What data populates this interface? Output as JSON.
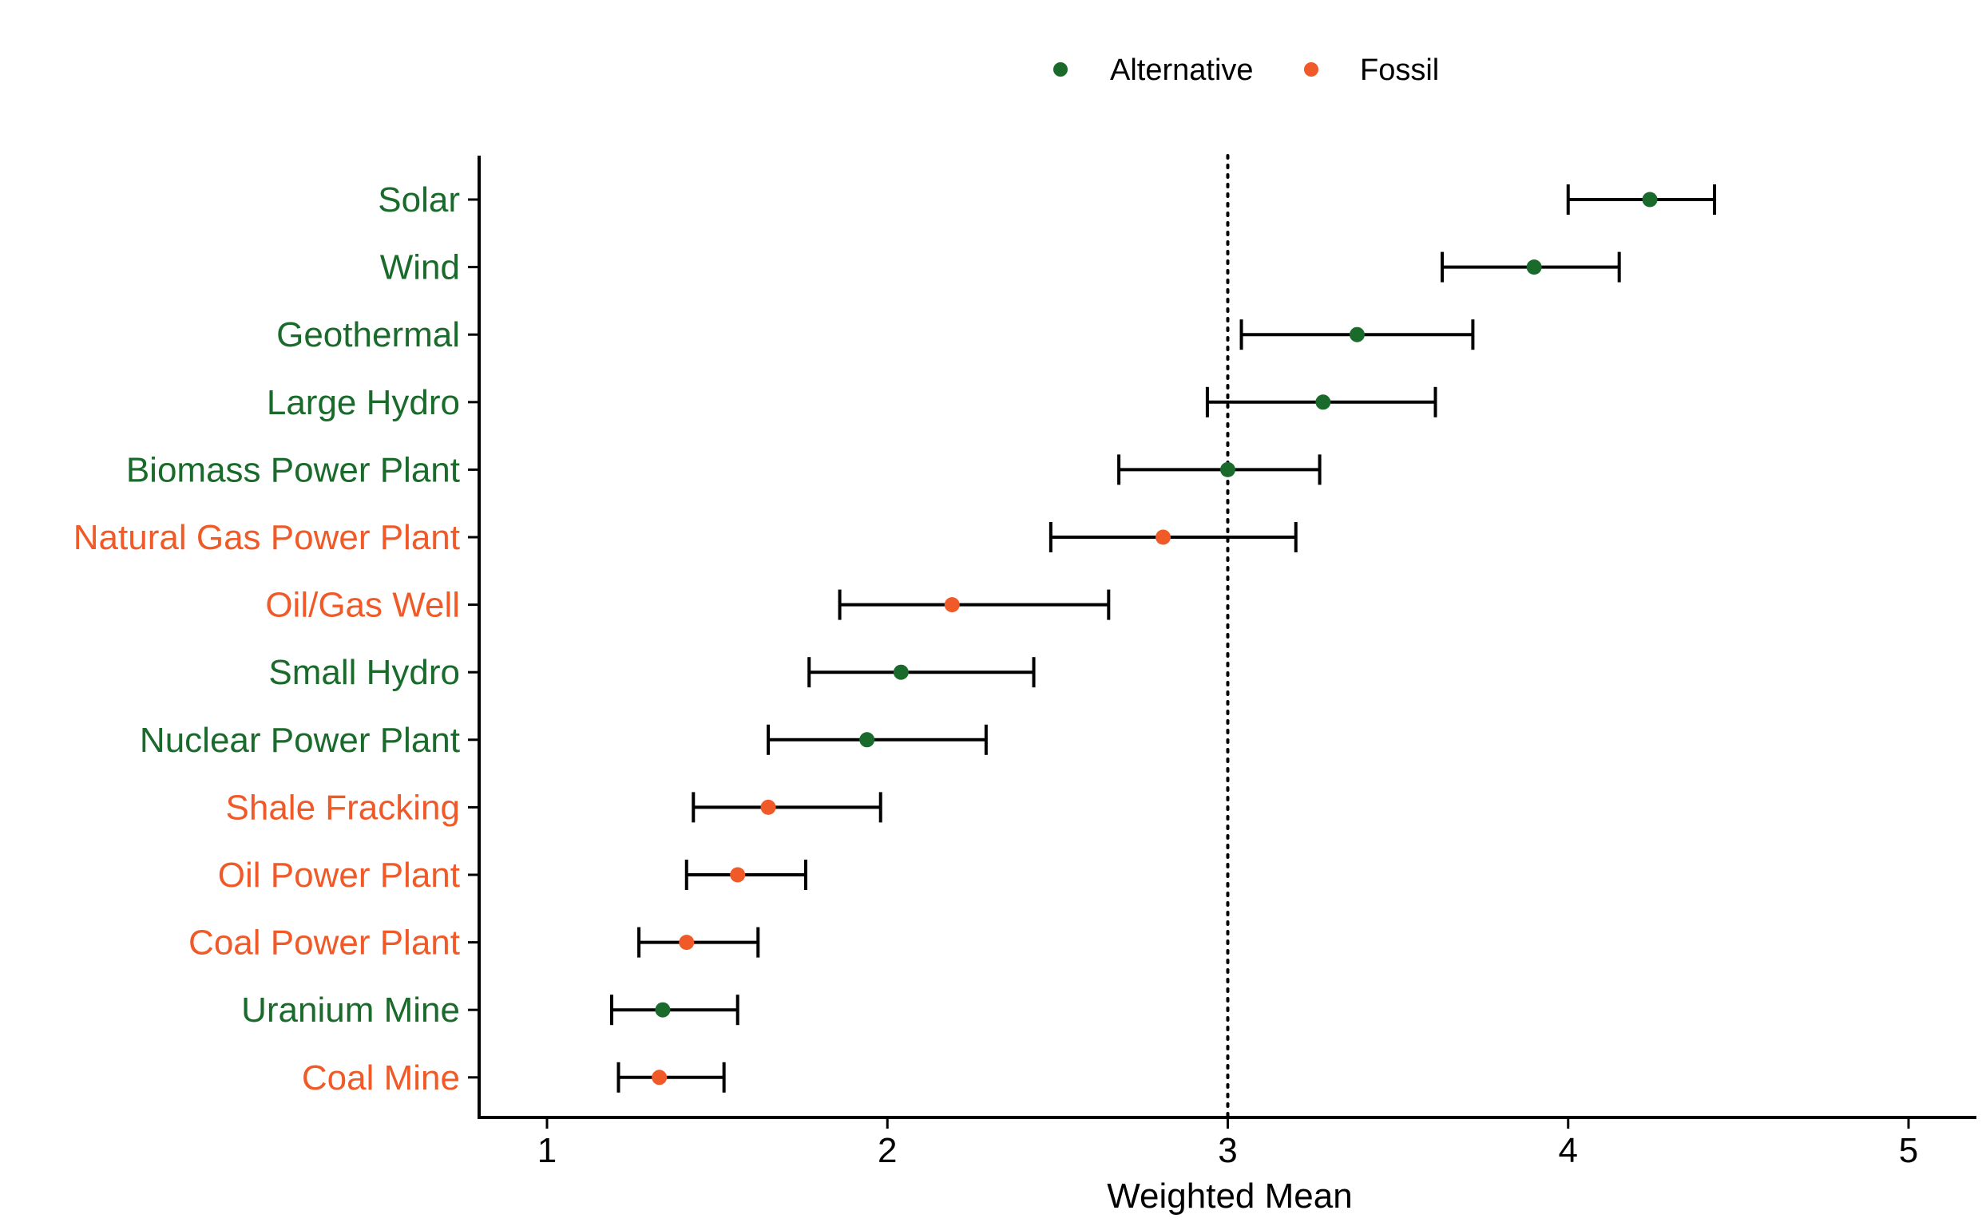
{
  "chart_data": {
    "type": "scatter",
    "subtype": "dot-with-error-bars",
    "xlabel": "Weighted Mean",
    "ylabel": "",
    "title": "",
    "xlim": [
      0.8,
      5.2
    ],
    "xticks": [
      1,
      2,
      3,
      4,
      5
    ],
    "reference_line": {
      "x": 3,
      "style": "dotted"
    },
    "grid": false,
    "legend": {
      "position": "top",
      "entries": [
        {
          "name": "Alternative",
          "color": "#1a6b2b"
        },
        {
          "name": "Fossil",
          "color": "#f05a28"
        }
      ]
    },
    "categories": [
      "Solar",
      "Wind",
      "Geothermal",
      "Large Hydro",
      "Biomass Power Plant",
      "Natural Gas Power Plant",
      "Oil/Gas Well",
      "Small Hydro",
      "Nuclear Power Plant",
      "Shale Fracking",
      "Oil Power Plant",
      "Coal Power Plant",
      "Uranium Mine",
      "Coal Mine"
    ],
    "points": [
      {
        "label": "Solar",
        "group": "Alternative",
        "mean": 4.24,
        "low": 4.0,
        "high": 4.43
      },
      {
        "label": "Wind",
        "group": "Alternative",
        "mean": 3.9,
        "low": 3.63,
        "high": 4.15
      },
      {
        "label": "Geothermal",
        "group": "Alternative",
        "mean": 3.38,
        "low": 3.04,
        "high": 3.72
      },
      {
        "label": "Large Hydro",
        "group": "Alternative",
        "mean": 3.28,
        "low": 2.94,
        "high": 3.61
      },
      {
        "label": "Biomass Power Plant",
        "group": "Alternative",
        "mean": 3.0,
        "low": 2.68,
        "high": 3.27
      },
      {
        "label": "Natural Gas Power Plant",
        "group": "Fossil",
        "mean": 2.81,
        "low": 2.48,
        "high": 3.2
      },
      {
        "label": "Oil/Gas Well",
        "group": "Fossil",
        "mean": 2.19,
        "low": 1.86,
        "high": 2.65
      },
      {
        "label": "Small Hydro",
        "group": "Alternative",
        "mean": 2.04,
        "low": 1.77,
        "high": 2.43
      },
      {
        "label": "Nuclear Power Plant",
        "group": "Alternative",
        "mean": 1.94,
        "low": 1.65,
        "high": 2.29
      },
      {
        "label": "Shale Fracking",
        "group": "Fossil",
        "mean": 1.65,
        "low": 1.43,
        "high": 1.98
      },
      {
        "label": "Oil Power Plant",
        "group": "Fossil",
        "mean": 1.56,
        "low": 1.41,
        "high": 1.76
      },
      {
        "label": "Coal Power Plant",
        "group": "Fossil",
        "mean": 1.41,
        "low": 1.27,
        "high": 1.62
      },
      {
        "label": "Uranium Mine",
        "group": "Alternative",
        "mean": 1.34,
        "low": 1.19,
        "high": 1.56
      },
      {
        "label": "Coal Mine",
        "group": "Fossil",
        "mean": 1.33,
        "low": 1.21,
        "high": 1.52
      }
    ]
  }
}
